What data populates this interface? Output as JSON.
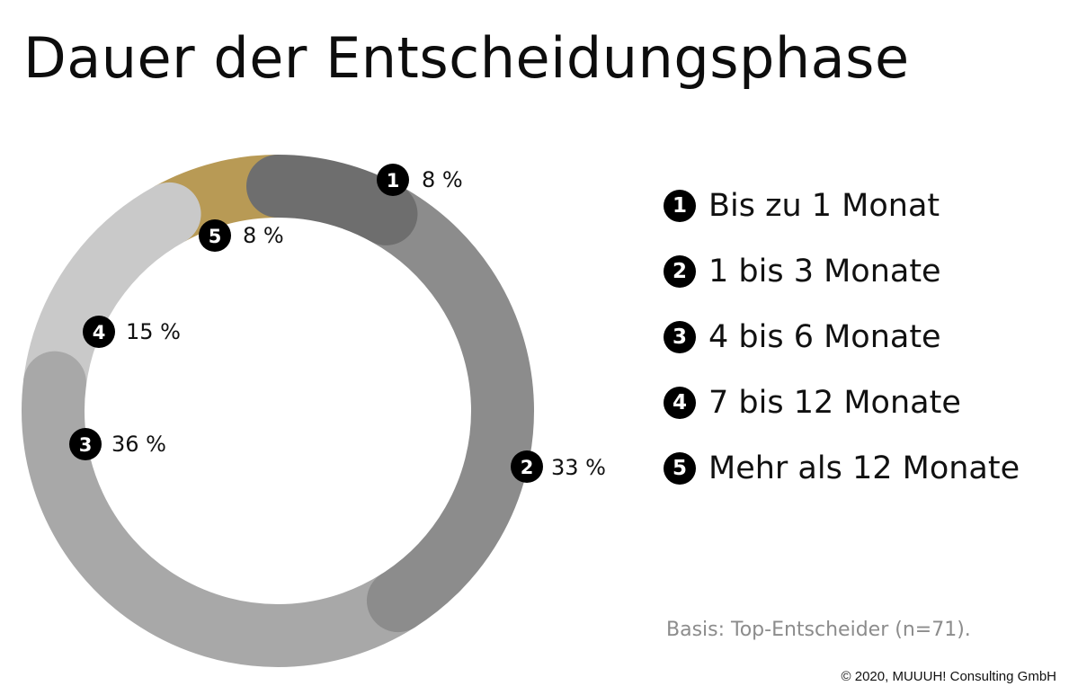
{
  "chart_data": {
    "type": "pie",
    "style": "donut",
    "title": "Dauer der Entscheidungsphase",
    "categories": [
      "Bis zu 1 Monat",
      "1 bis 3 Monate",
      "4 bis 6 Monate",
      "7 bis 12 Monate",
      "Mehr als 12 Monate"
    ],
    "numbers": [
      "1",
      "2",
      "3",
      "4",
      "5"
    ],
    "values": [
      8,
      33,
      36,
      15,
      8
    ],
    "value_labels": [
      "8 %",
      "33 %",
      "36 %",
      "15 %",
      "8 %"
    ],
    "colors": [
      "#6e6e6e",
      "#8c8c8c",
      "#a8a8a8",
      "#c9c9c9",
      "#b89a55"
    ],
    "legend_position": "right",
    "note": "Basis: Top-Entscheider (n=71).",
    "copyright": "© 2020, MUUUH! Consulting GmbH"
  }
}
